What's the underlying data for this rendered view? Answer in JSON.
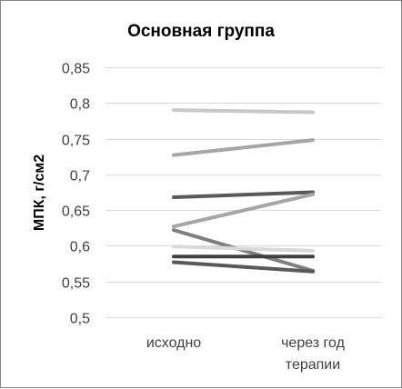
{
  "chart_data": {
    "type": "line",
    "title": "Основная группа",
    "xlabel": "",
    "ylabel": "МПК, г/см2",
    "categories": [
      [
        "исходно"
      ],
      [
        "через год",
        "терапии"
      ]
    ],
    "ylim": [
      0.5,
      0.85
    ],
    "yticks": [
      0.5,
      0.55,
      0.6,
      0.65,
      0.7,
      0.75,
      0.8,
      0.85
    ],
    "ytick_labels": [
      "0,5",
      "0,55",
      "0,6",
      "0,65",
      "0,7",
      "0,75",
      "0,8",
      "0,85"
    ],
    "grid": true,
    "legend": "none",
    "series": [
      {
        "values": [
          0.79,
          0.787
        ],
        "color": "#c8c8c8"
      },
      {
        "values": [
          0.727,
          0.748
        ],
        "color": "#a6a6a6"
      },
      {
        "values": [
          0.668,
          0.675
        ],
        "color": "#595959"
      },
      {
        "values": [
          0.627,
          0.672
        ],
        "color": "#a6a6a6"
      },
      {
        "values": [
          0.622,
          0.565
        ],
        "color": "#7f7f7f"
      },
      {
        "values": [
          0.599,
          0.593
        ],
        "color": "#d9d9d9"
      },
      {
        "values": [
          0.585,
          0.585
        ],
        "color": "#404040"
      },
      {
        "values": [
          0.577,
          0.564
        ],
        "color": "#595959"
      }
    ]
  }
}
